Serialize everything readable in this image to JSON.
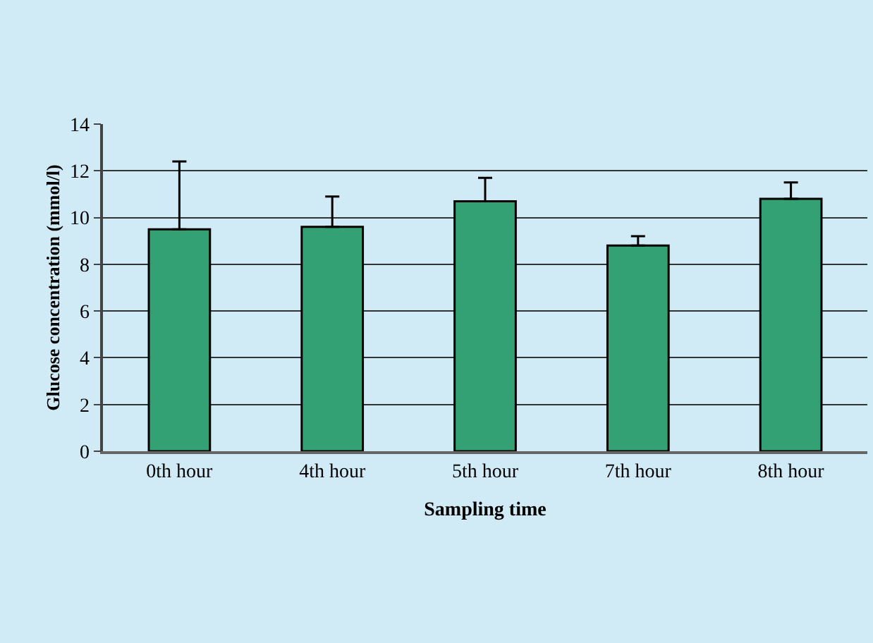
{
  "chart_data": {
    "type": "bar",
    "xlabel": "Sampling time",
    "ylabel": "Glucose concentration (mmol/l)",
    "categories": [
      "0th hour",
      "4th hour",
      "5th hour",
      "7th hour",
      "8th hour"
    ],
    "values": [
      9.5,
      9.6,
      10.7,
      8.8,
      10.8
    ],
    "errors": [
      [
        9.5,
        12.4
      ],
      [
        9.6,
        10.9
      ],
      [
        10.7,
        11.7
      ],
      [
        8.8,
        9.2
      ],
      [
        10.8,
        11.5
      ]
    ],
    "color": "#33a173",
    "ylim": [
      0,
      14
    ],
    "yticks": [
      0,
      2,
      4,
      6,
      8,
      10,
      12,
      14
    ],
    "grid": "y"
  }
}
